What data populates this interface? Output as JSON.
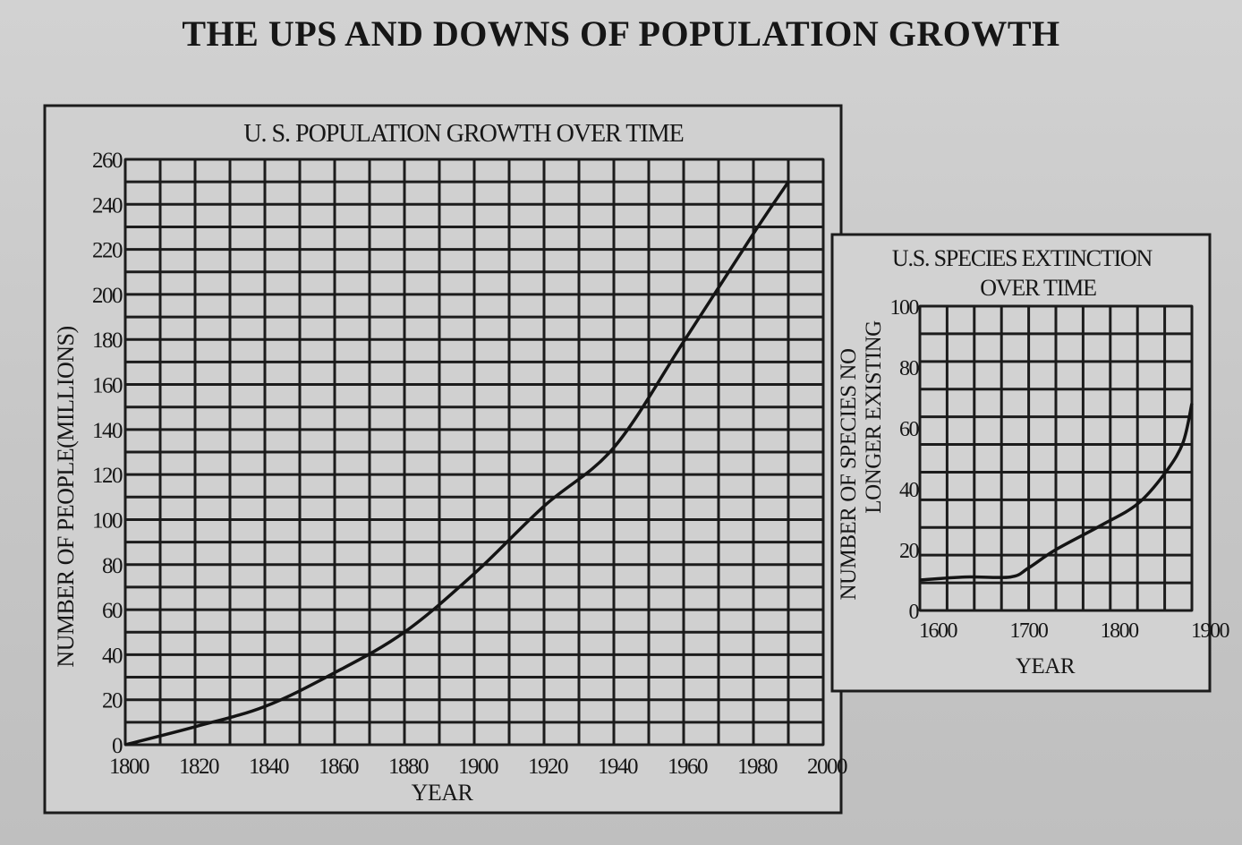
{
  "page": {
    "title": "THE UPS AND DOWNS OF POPULATION GROWTH"
  },
  "chart_data": [
    {
      "type": "line",
      "title": "U. S. POPULATION GROWTH OVER TIME",
      "xlabel": "YEAR",
      "ylabel": "NUMBER OF PEOPLE(MILLIONS)",
      "xlim": [
        1800,
        2000
      ],
      "ylim": [
        0,
        260
      ],
      "x_ticks": [
        1800,
        1820,
        1840,
        1860,
        1880,
        1900,
        1920,
        1940,
        1960,
        1980,
        2000
      ],
      "y_ticks": [
        0,
        20,
        40,
        60,
        80,
        100,
        120,
        140,
        160,
        180,
        200,
        220,
        240,
        260
      ],
      "grid": true,
      "series": [
        {
          "x": [
            1800,
            1820,
            1840,
            1860,
            1880,
            1900,
            1920,
            1940,
            1960,
            1980,
            1990
          ],
          "y": [
            0,
            8,
            17,
            32,
            50,
            76,
            106,
            132,
            179,
            227,
            250
          ]
        }
      ]
    },
    {
      "type": "line",
      "title": "U.S. SPECIES EXTINCTION OVER TIME",
      "xlabel": "YEAR",
      "ylabel": "NUMBER OF SPECIES NO LONGER EXISTING",
      "xlim": [
        1600,
        1900
      ],
      "ylim": [
        0,
        100
      ],
      "x_ticks": [
        1600,
        1700,
        1800,
        1900
      ],
      "y_ticks": [
        0,
        20,
        40,
        60,
        80,
        100
      ],
      "grid": true,
      "series": [
        {
          "x": [
            1600,
            1650,
            1700,
            1720,
            1750,
            1800,
            1840,
            1870,
            1890,
            1900
          ],
          "y": [
            10,
            11,
            11,
            14,
            20,
            28,
            35,
            45,
            55,
            68
          ]
        }
      ]
    }
  ]
}
